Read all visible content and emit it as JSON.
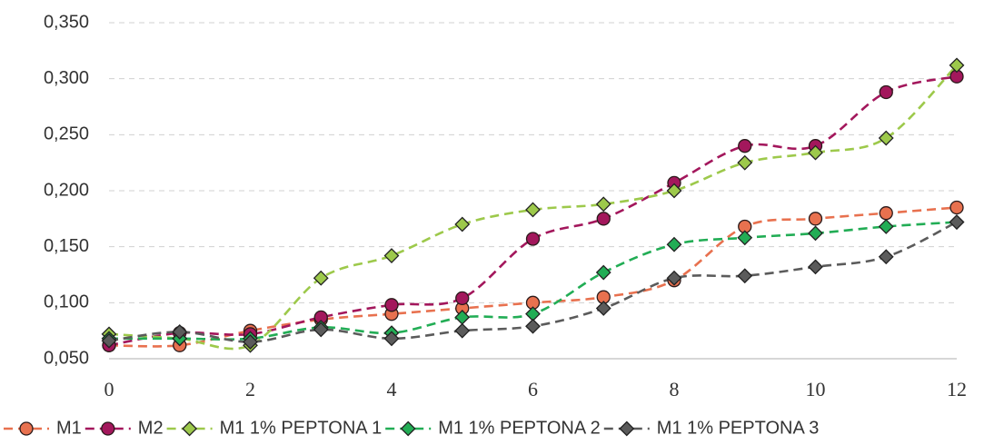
{
  "chart_data": {
    "type": "line",
    "x": [
      0,
      1,
      2,
      3,
      4,
      5,
      6,
      7,
      8,
      9,
      10,
      11,
      12
    ],
    "xlim": [
      0,
      12
    ],
    "xticks": [
      0,
      2,
      4,
      6,
      8,
      10,
      12
    ],
    "ylim": [
      0.05,
      0.35
    ],
    "yticks": [
      {
        "value": 0.05,
        "label": "0,050"
      },
      {
        "value": 0.1,
        "label": "0,100"
      },
      {
        "value": 0.15,
        "label": "0,150"
      },
      {
        "value": 0.2,
        "label": "0,200"
      },
      {
        "value": 0.25,
        "label": "0,250"
      },
      {
        "value": 0.3,
        "label": "0,300"
      },
      {
        "value": 0.35,
        "label": "0,350"
      }
    ],
    "grid": true,
    "legend": "bottom",
    "series": [
      {
        "name": "M1",
        "color": "#e8714f",
        "marker": "circle",
        "values": [
          0.062,
          0.062,
          0.075,
          0.085,
          0.09,
          0.095,
          0.1,
          0.105,
          0.12,
          0.168,
          0.175,
          0.18,
          0.185
        ]
      },
      {
        "name": "M2",
        "color": "#a3175c",
        "marker": "circle",
        "values": [
          0.062,
          0.073,
          0.072,
          0.087,
          0.098,
          0.104,
          0.157,
          0.175,
          0.207,
          0.24,
          0.24,
          0.288,
          0.302
        ]
      },
      {
        "name": "M1 1% PEPTONA 1",
        "color": "#9dc94b",
        "marker": "diamond",
        "values": [
          0.072,
          0.068,
          0.062,
          0.122,
          0.142,
          0.17,
          0.183,
          0.188,
          0.2,
          0.225,
          0.234,
          0.247,
          0.312
        ]
      },
      {
        "name": "M1 1% PEPTONA 2",
        "color": "#22ad55",
        "marker": "diamond",
        "values": [
          0.068,
          0.068,
          0.068,
          0.078,
          0.073,
          0.087,
          0.09,
          0.127,
          0.152,
          0.158,
          0.162,
          0.168,
          0.172
        ]
      },
      {
        "name": "M1 1% PEPTONA 3",
        "color": "#5b5b5b",
        "marker": "diamond",
        "values": [
          0.066,
          0.074,
          0.065,
          0.076,
          0.068,
          0.075,
          0.079,
          0.095,
          0.122,
          0.124,
          0.132,
          0.141,
          0.172
        ]
      }
    ]
  }
}
